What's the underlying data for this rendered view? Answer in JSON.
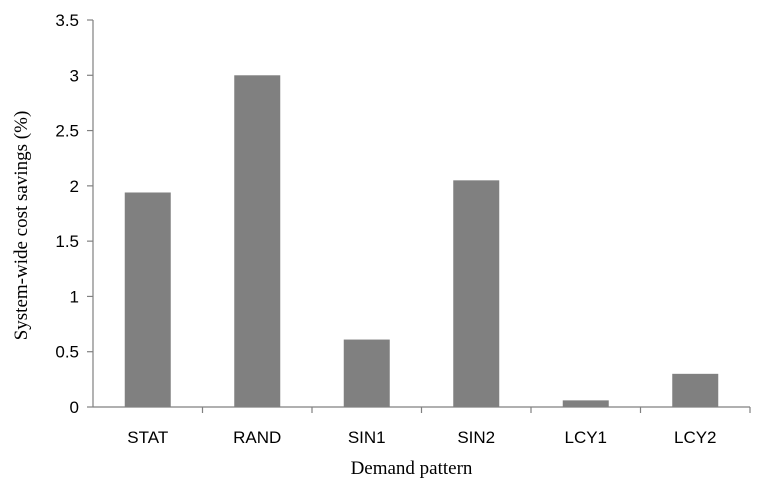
{
  "chart_data": {
    "type": "bar",
    "title": "",
    "xlabel": "Demand pattern",
    "ylabel": "System-wide cost savings (%)",
    "categories": [
      "STAT",
      "RAND",
      "SIN1",
      "SIN2",
      "LCY1",
      "LCY2"
    ],
    "values": [
      1.94,
      3.0,
      0.61,
      2.05,
      0.06,
      0.3
    ],
    "ylim": [
      0,
      3.5
    ],
    "yticks": [
      "0",
      "0.5",
      "1",
      "1.5",
      "2",
      "2.5",
      "3",
      "3.5"
    ],
    "grid": false,
    "legend": "none",
    "bar_color": "#808080"
  }
}
